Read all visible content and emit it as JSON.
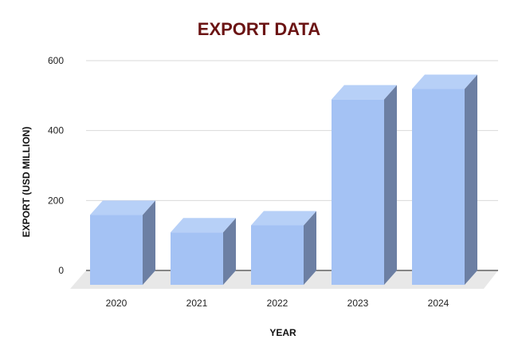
{
  "chart_data": {
    "type": "bar",
    "title": "EXPORT DATA",
    "xlabel": "YEAR",
    "ylabel": "EXPORT (USD MILLION)",
    "categories": [
      "2020",
      "2021",
      "2022",
      "2023",
      "2024"
    ],
    "values": [
      200,
      150,
      170,
      530,
      560
    ],
    "ylim": [
      0,
      600
    ],
    "yticks": [
      0,
      200,
      400,
      600
    ],
    "grid": true,
    "legend": "none",
    "style": "3d-columns"
  },
  "colors": {
    "title": "#6b1414",
    "bar_front": "#a4c2f4",
    "bar_top": "#b7d0f7",
    "bar_side": "#6c7fa3",
    "floor": "#e8e8e8",
    "gridline": "#d9d9d9",
    "baseline": "#444444"
  }
}
